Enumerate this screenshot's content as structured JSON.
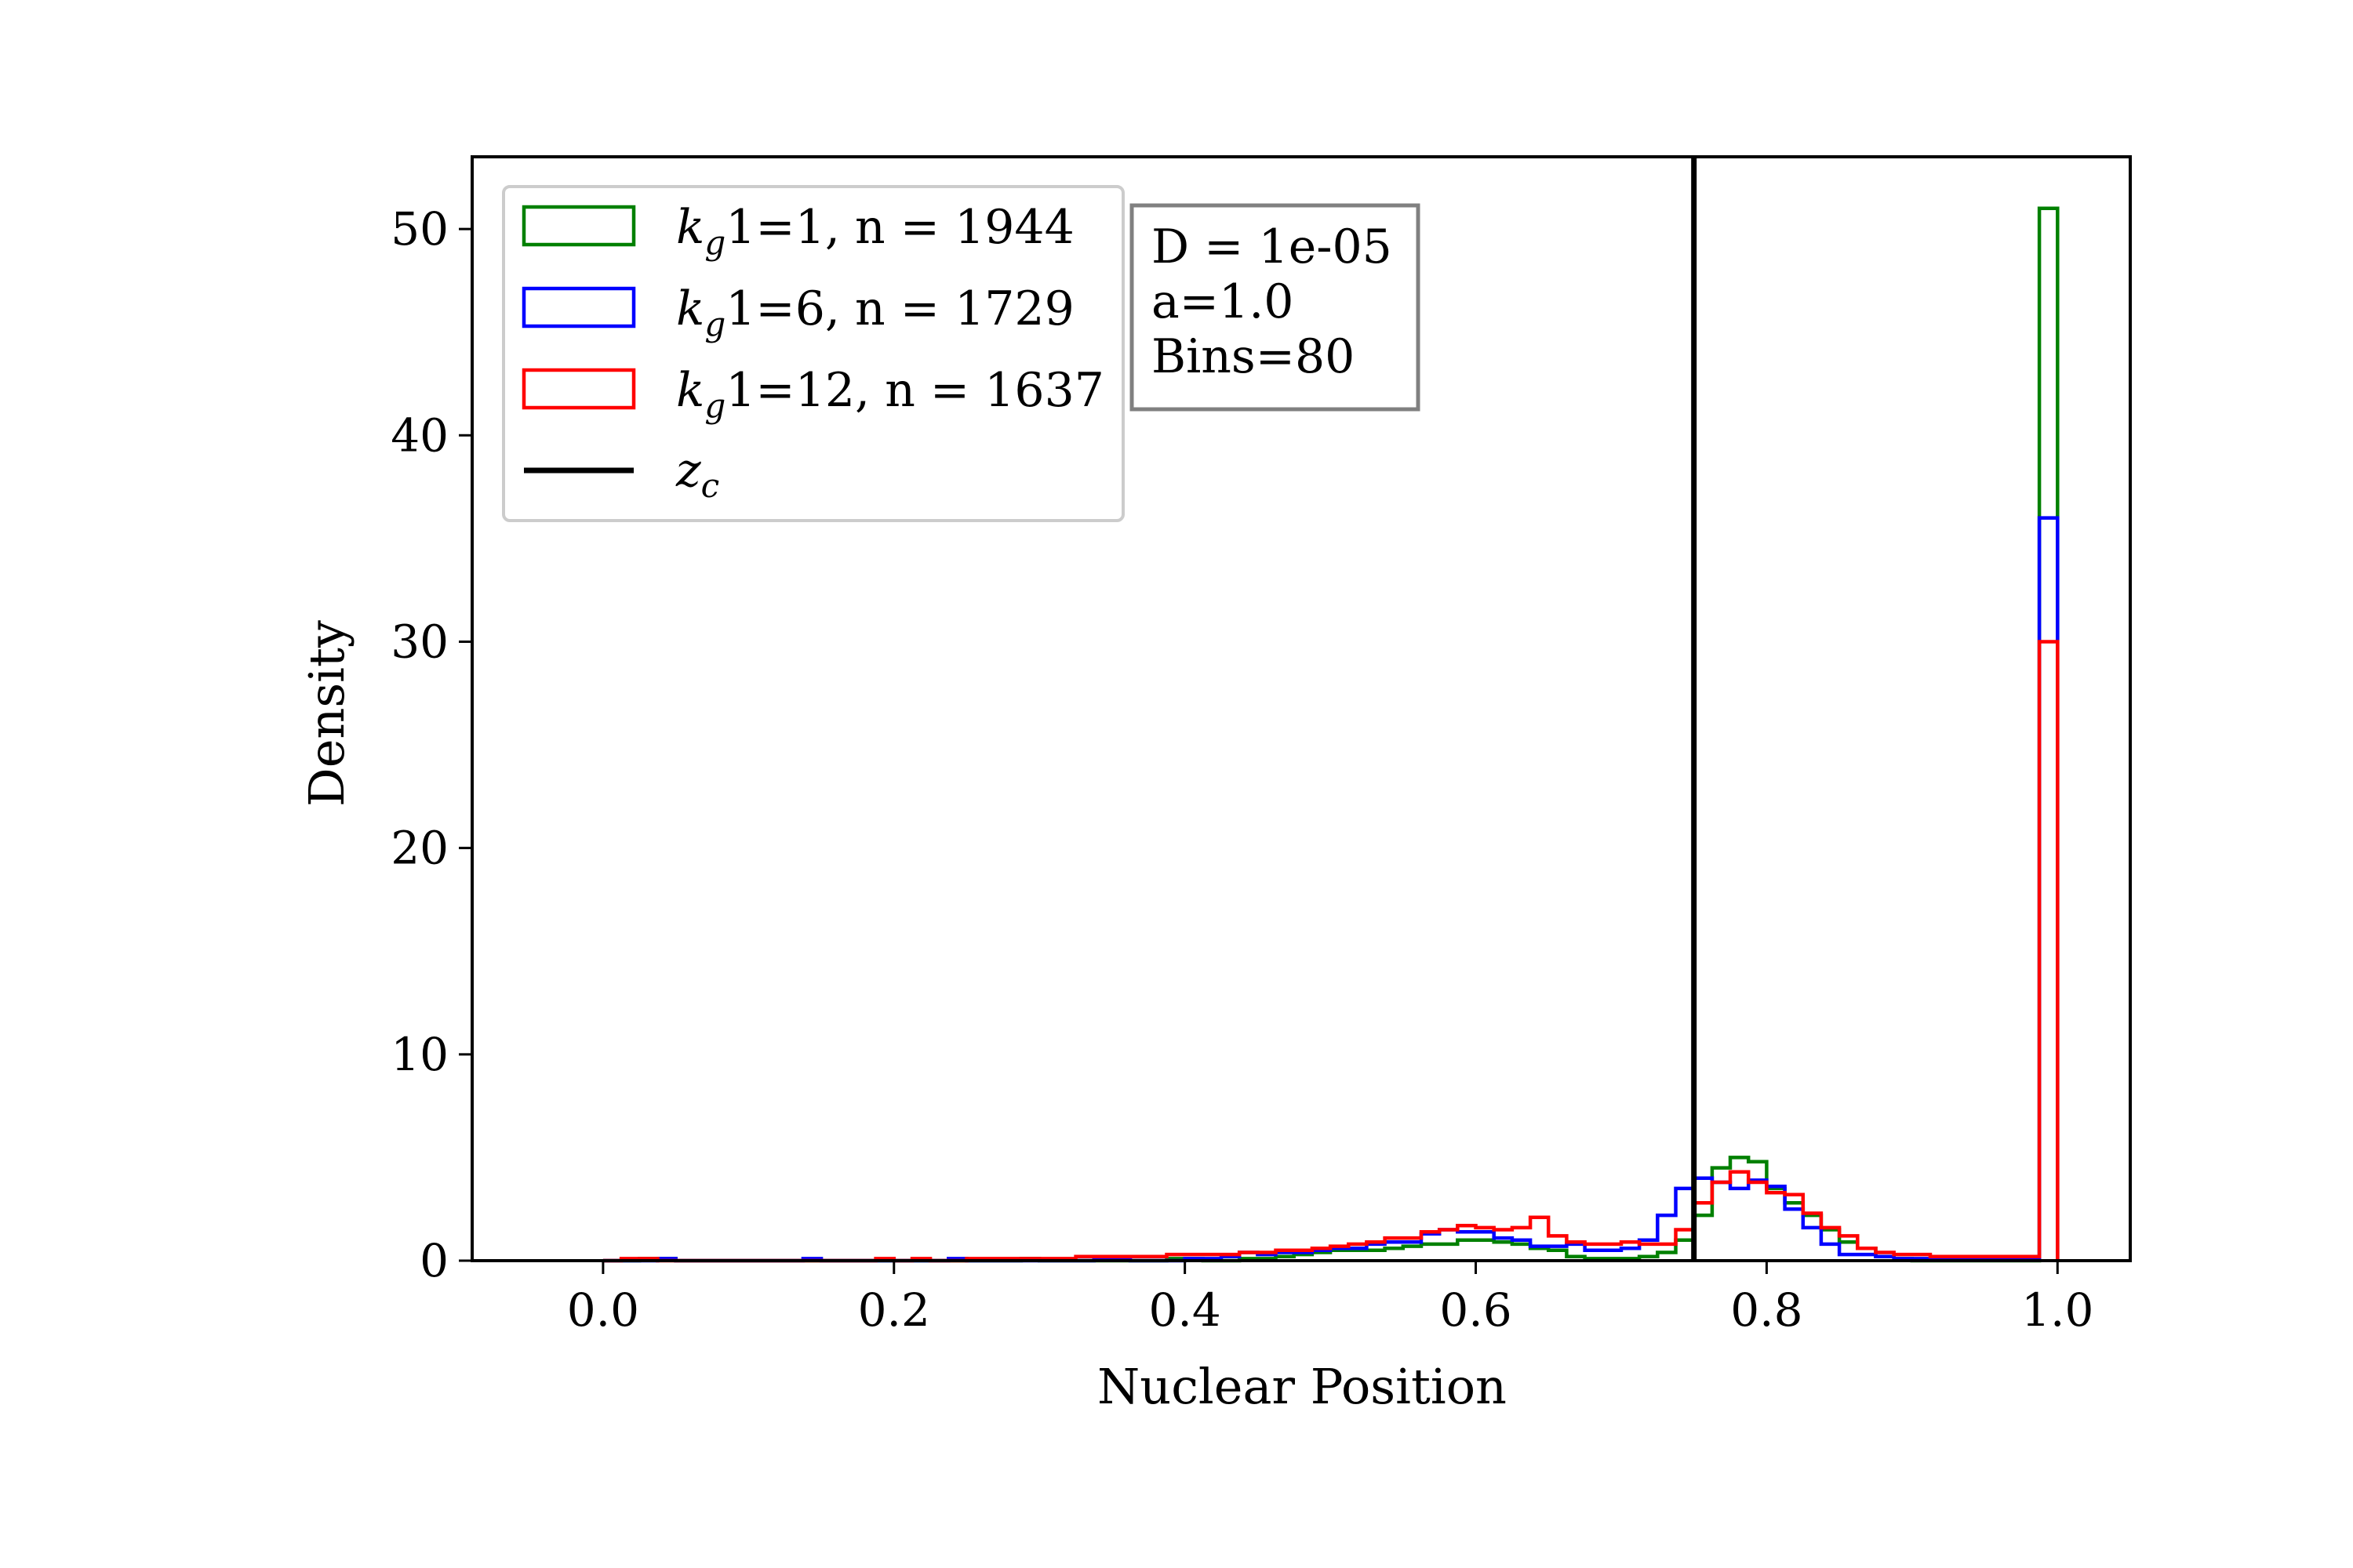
{
  "chart_data": {
    "type": "histogram",
    "title": "",
    "xlabel": "Nuclear Position",
    "ylabel": "Density",
    "xlim": [
      -0.09,
      1.05
    ],
    "ylim": [
      0,
      53.5
    ],
    "x_ticks": [
      "0.0",
      "0.2",
      "0.4",
      "0.6",
      "0.8",
      "1.0"
    ],
    "y_ticks": [
      "0",
      "10",
      "20",
      "30",
      "40",
      "50"
    ],
    "grid": false,
    "legend_position": "upper-left",
    "bins": 80,
    "bin_range": [
      0,
      1
    ],
    "series": [
      {
        "name": "k_g1=1, n = 1944",
        "color": "#008000",
        "values": [
          0,
          0,
          0.1,
          0.1,
          0,
          0,
          0,
          0,
          0,
          0,
          0,
          0,
          0,
          0,
          0,
          0,
          0,
          0,
          0,
          0,
          0,
          0,
          0,
          0.1,
          0,
          0,
          0,
          0,
          0,
          0,
          0,
          0.1,
          0.1,
          0,
          0,
          0.1,
          0.1,
          0.2,
          0.3,
          0.4,
          0.5,
          0.5,
          0.5,
          0.6,
          0.7,
          0.8,
          0.8,
          1.0,
          1.0,
          0.9,
          0.8,
          0.6,
          0.5,
          0.2,
          0.1,
          0.1,
          0.1,
          0.2,
          0.4,
          1.0,
          2.2,
          4.5,
          5.0,
          4.8,
          3.5,
          2.8,
          2.2,
          1.5,
          0.9,
          0.6,
          0.2,
          0.1,
          0,
          0,
          0,
          0,
          0,
          0,
          0,
          51.0
        ]
      },
      {
        "name": "k_g1=6, n = 1729",
        "color": "#0000ff",
        "values": [
          0,
          0,
          0,
          0.1,
          0,
          0,
          0,
          0,
          0,
          0,
          0,
          0.1,
          0,
          0,
          0,
          0,
          0,
          0,
          0,
          0.1,
          0,
          0,
          0,
          0,
          0,
          0,
          0,
          0.1,
          0.1,
          0,
          0,
          0,
          0.1,
          0.1,
          0.2,
          0.4,
          0.3,
          0.4,
          0.4,
          0.5,
          0.6,
          0.6,
          0.8,
          0.9,
          0.9,
          1.3,
          1.5,
          1.4,
          1.4,
          1.1,
          1.0,
          0.7,
          0.7,
          0.8,
          0.5,
          0.5,
          0.6,
          1.0,
          2.2,
          3.5,
          4.0,
          3.8,
          3.5,
          3.9,
          3.6,
          2.5,
          1.6,
          0.8,
          0.3,
          0.3,
          0.2,
          0.1,
          0.1,
          0.1,
          0.1,
          0.1,
          0.1,
          0.1,
          0.1,
          36.0
        ]
      },
      {
        "name": "k_g1=12, n = 1637",
        "color": "#ff0000",
        "values": [
          0,
          0.1,
          0.1,
          0,
          0,
          0,
          0,
          0,
          0,
          0,
          0,
          0,
          0,
          0,
          0,
          0.1,
          0,
          0.1,
          0,
          0,
          0.1,
          0.1,
          0.1,
          0.1,
          0.1,
          0.1,
          0.2,
          0.2,
          0.2,
          0.2,
          0.2,
          0.3,
          0.3,
          0.3,
          0.3,
          0.4,
          0.4,
          0.5,
          0.5,
          0.6,
          0.7,
          0.8,
          0.9,
          1.1,
          1.1,
          1.4,
          1.5,
          1.7,
          1.6,
          1.5,
          1.6,
          2.1,
          1.2,
          0.9,
          0.8,
          0.8,
          0.9,
          0.8,
          0.8,
          1.5,
          2.8,
          3.8,
          4.3,
          3.8,
          3.3,
          3.2,
          2.3,
          1.6,
          1.2,
          0.6,
          0.4,
          0.3,
          0.3,
          0.2,
          0.2,
          0.2,
          0.2,
          0.2,
          0.2,
          30.0
        ]
      }
    ],
    "reference_line": {
      "name": "z_c",
      "x": 0.75,
      "color": "#000000"
    },
    "annotation_box": {
      "lines": [
        "D = 1e-05",
        "a=1.0",
        "Bins=80"
      ]
    }
  },
  "legend": {
    "entries": [
      {
        "base": "k",
        "sub": "g",
        "rest": "1=1, n = 1944",
        "color": "#008000",
        "kind": "patch"
      },
      {
        "base": "k",
        "sub": "g",
        "rest": "1=6, n = 1729",
        "color": "#0000ff",
        "kind": "patch"
      },
      {
        "base": "k",
        "sub": "g",
        "rest": "1=12, n = 1637",
        "color": "#ff0000",
        "kind": "patch"
      },
      {
        "base": "z",
        "sub": "c",
        "rest": "",
        "color": "#000000",
        "kind": "line"
      }
    ]
  }
}
